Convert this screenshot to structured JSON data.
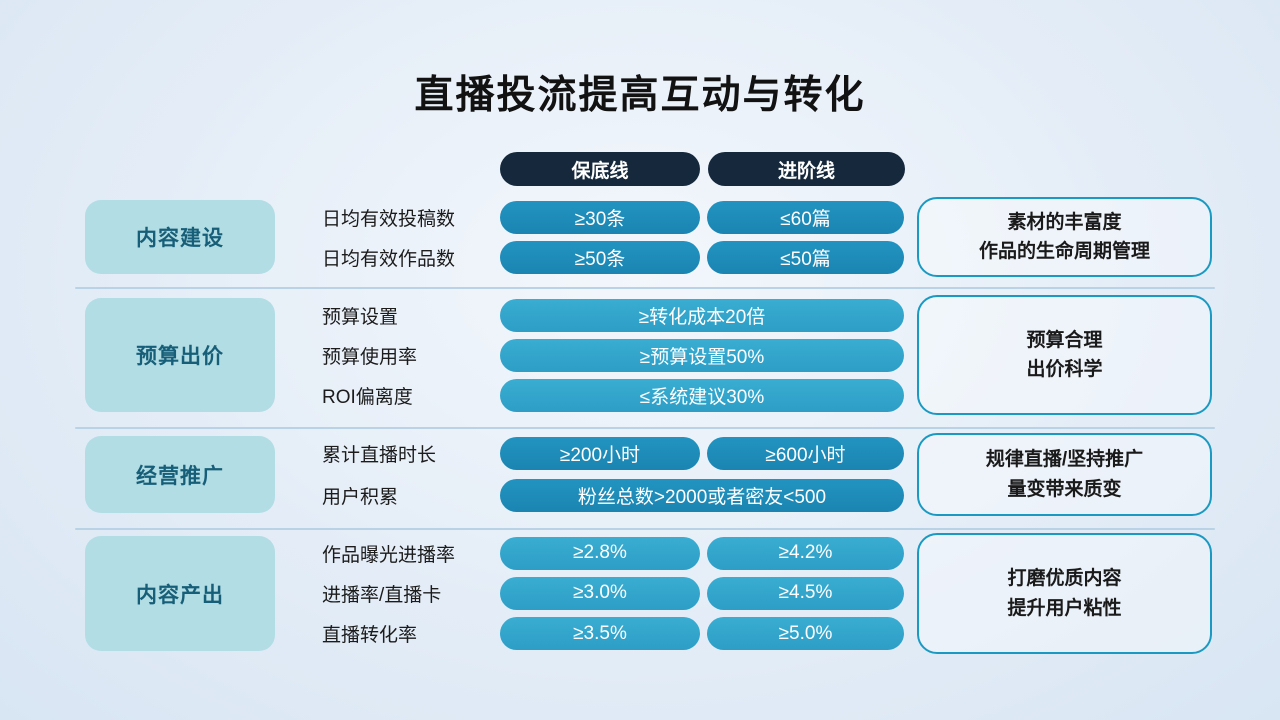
{
  "title": "直播投流提高互动与转化",
  "column_headers": {
    "baseline": "保底线",
    "advanced": "进阶线"
  },
  "colors": {
    "header_pill": "#16293c",
    "pill_dark": "#1e8cb8",
    "pill_light": "#31a5cb",
    "category_bg": "#b2dde4",
    "category_text": "#175f78",
    "note_border": "#1a9ac2",
    "divider": "#b9d2e6"
  },
  "groups": [
    {
      "category": "内容建设",
      "rows": [
        {
          "label": "日均有效投稿数",
          "baseline": "≥30条",
          "advanced": "≤60篇"
        },
        {
          "label": "日均有效作品数",
          "baseline": "≥50条",
          "advanced": "≤50篇"
        }
      ],
      "note_line1": "素材的丰富度",
      "note_line2": "作品的生命周期管理"
    },
    {
      "category": "预算出价",
      "rows": [
        {
          "label": "预算设置",
          "wide": "≥转化成本20倍"
        },
        {
          "label": "预算使用率",
          "wide": "≥预算设置50%"
        },
        {
          "label": "ROI偏离度",
          "wide": "≤系统建议30%"
        }
      ],
      "note_line1": "预算合理",
      "note_line2": "出价科学"
    },
    {
      "category": "经营推广",
      "rows": [
        {
          "label": "累计直播时长",
          "baseline": "≥200小时",
          "advanced": "≥600小时"
        },
        {
          "label": "用户积累",
          "wide": "粉丝总数>2000或者密友<500"
        }
      ],
      "note_line1": "规律直播/坚持推广",
      "note_line2": "量变带来质变"
    },
    {
      "category": "内容产出",
      "rows": [
        {
          "label": "作品曝光进播率",
          "baseline": "≥2.8%",
          "advanced": "≥4.2%"
        },
        {
          "label": "进播率/直播卡",
          "baseline": "≥3.0%",
          "advanced": "≥4.5%"
        },
        {
          "label": "直播转化率",
          "baseline": "≥3.5%",
          "advanced": "≥5.0%"
        }
      ],
      "note_line1": "打磨优质内容",
      "note_line2": "提升用户粘性"
    }
  ]
}
